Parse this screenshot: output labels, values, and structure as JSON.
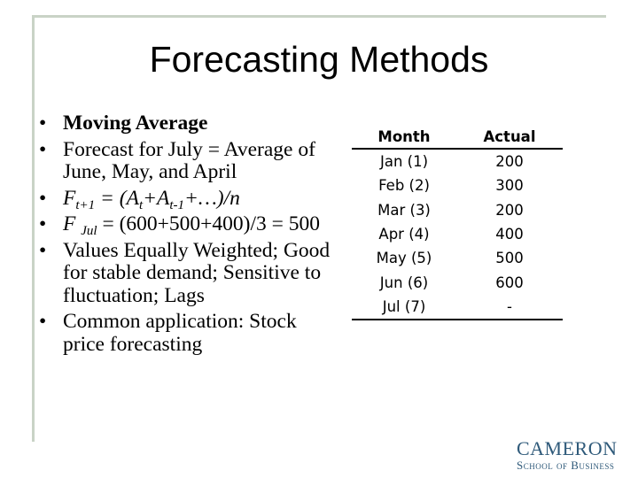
{
  "title": "Forecasting Methods",
  "bullets": {
    "b1": "Moving Average",
    "b2": "Forecast for July = Average of June, May, and April",
    "b3": {
      "f": "F",
      "s1": "t+1",
      "eq": " = (A",
      "s2": "t",
      "plus": "+A",
      "s3": "t-1",
      "rest": "+…)/n"
    },
    "b4": {
      "f": "F ",
      "sub": "Jul",
      "rest": " = (600+500+400)/3 = 500"
    },
    "b5": "Values Equally Weighted; Good for stable demand; Sensitive to fluctuation; Lags",
    "b6": "Common application: Stock price forecasting"
  },
  "table": {
    "headers": [
      "Month",
      "Actual"
    ],
    "rows": [
      [
        "Jan (1)",
        "200"
      ],
      [
        "Feb (2)",
        "300"
      ],
      [
        "Mar (3)",
        "200"
      ],
      [
        "Apr (4)",
        "400"
      ],
      [
        "May (5)",
        "500"
      ],
      [
        "Jun (6)",
        "600"
      ],
      [
        "Jul (7)",
        "-"
      ]
    ]
  },
  "logo": {
    "line1": "CAMERON",
    "line2": "School of Business"
  },
  "colors": {
    "frame": "#c9d3c6",
    "logo": "#2f5a7a"
  }
}
